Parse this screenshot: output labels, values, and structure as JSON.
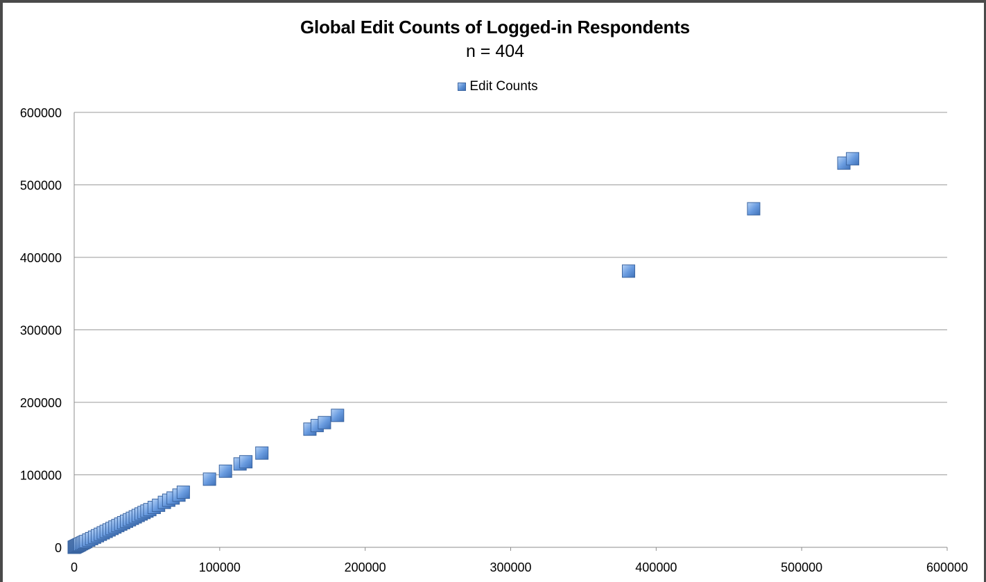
{
  "chart_data": {
    "type": "scatter",
    "title": "Global Edit Counts of Logged-in Respondents",
    "subtitle": "n = 404",
    "legend": {
      "position": "top-center",
      "entries": [
        "Edit Counts"
      ]
    },
    "xlabel": "",
    "ylabel": "",
    "xlim": [
      0,
      600000
    ],
    "ylim": [
      0,
      600000
    ],
    "x_ticks": [
      "0",
      "100000",
      "200000",
      "300000",
      "400000",
      "500000",
      "600000"
    ],
    "y_ticks": [
      "0",
      "100000",
      "200000",
      "300000",
      "400000",
      "500000",
      "600000"
    ],
    "grid": {
      "horizontal": true,
      "vertical": false
    },
    "series_color": "#5b8fd4",
    "series": [
      {
        "name": "Edit Counts",
        "marker": "square",
        "x": [
          0,
          500,
          1000,
          1500,
          2000,
          2500,
          3000,
          3500,
          4000,
          5000,
          6000,
          7000,
          8000,
          10000,
          12000,
          14000,
          16000,
          18000,
          20000,
          22000,
          24000,
          26000,
          28000,
          30000,
          32000,
          34000,
          36000,
          38000,
          40000,
          42000,
          44000,
          46000,
          48000,
          50000,
          52000,
          55000,
          58000,
          62000,
          65000,
          68000,
          72000,
          75000,
          93000,
          104000,
          114000,
          118000,
          129000,
          162000,
          167000,
          172000,
          181000,
          381000,
          467000,
          529000,
          535000
        ],
        "y": [
          0,
          500,
          1000,
          1500,
          2000,
          2500,
          3000,
          3500,
          4000,
          5000,
          6000,
          7000,
          8000,
          10000,
          12000,
          14000,
          16000,
          18000,
          20000,
          22000,
          24000,
          26000,
          28000,
          30000,
          32000,
          34000,
          36000,
          38000,
          40000,
          42000,
          44000,
          46000,
          48000,
          50000,
          52000,
          55000,
          58000,
          62000,
          65000,
          68000,
          72000,
          76000,
          94000,
          105000,
          115000,
          118000,
          130000,
          163000,
          168000,
          172000,
          182000,
          381000,
          467000,
          530000,
          536000
        ]
      }
    ]
  }
}
